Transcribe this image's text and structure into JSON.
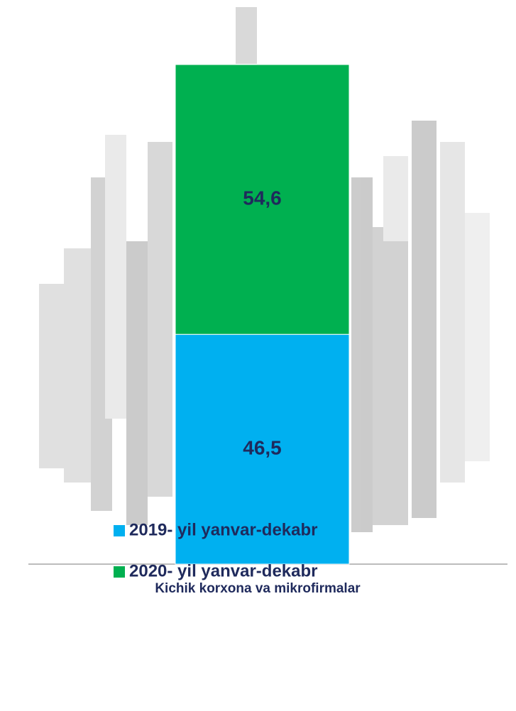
{
  "chart_data": {
    "type": "stacked-bar",
    "categories": [
      "Kichik korxona va mikrofirmalar"
    ],
    "series": [
      {
        "name": "2019- yil yanvar-dekabr",
        "color": "#00b0f0",
        "values": [
          46.5
        ],
        "value_labels": [
          "46,5"
        ]
      },
      {
        "name": "2020- yil yanvar-dekabr",
        "color": "#00b050",
        "values": [
          54.6
        ],
        "value_labels": [
          "54,6"
        ]
      }
    ],
    "ylim": [
      0,
      110
    ]
  }
}
